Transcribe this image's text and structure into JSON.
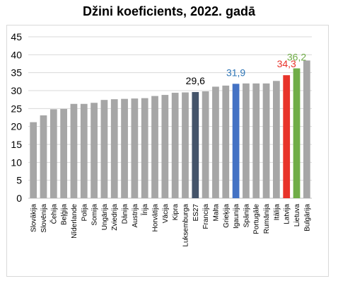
{
  "chart_data": {
    "type": "bar",
    "title": "Džini koeficients, 2022. gadā",
    "xlabel": "",
    "ylabel": "",
    "ylim": [
      0,
      45
    ],
    "yticks": [
      0,
      5,
      10,
      15,
      20,
      25,
      30,
      35,
      40,
      45
    ],
    "grid": true,
    "categories": [
      "Slovākija",
      "Slovēnija",
      "Čehija",
      "Beļģija",
      "Nīderlande",
      "Polija",
      "Somija",
      "Ungārija",
      "Zviedrija",
      "Dānija",
      "Austrija",
      "Īrija",
      "Horvātija",
      "Vācija",
      "Kipra",
      "Luksemburga",
      "ES27",
      "Francija",
      "Malta",
      "Grieķija",
      "Igaunija",
      "Spānija",
      "Portugāle",
      "Rumānija",
      "Itālija",
      "Latvija",
      "Lietuva",
      "Bulgārija"
    ],
    "values": [
      21.2,
      23.1,
      24.8,
      24.9,
      26.3,
      26.3,
      26.6,
      27.4,
      27.6,
      27.7,
      27.8,
      27.9,
      28.5,
      28.8,
      29.4,
      29.5,
      29.6,
      29.8,
      31.1,
      31.4,
      31.9,
      32.0,
      32.0,
      32.0,
      32.7,
      34.3,
      36.2,
      38.4
    ],
    "colors": {
      "default": "#a6a6a6",
      "ES27": "#44546a",
      "Igaunija": "#4472c4",
      "Latvija": "#e8332a",
      "Lietuva": "#70ad47",
      "Bulgārija": "#a6a6a6"
    },
    "data_labels": [
      {
        "category": "ES27",
        "text": "29,6",
        "color": "#000000"
      },
      {
        "category": "Igaunija",
        "text": "31,9",
        "color": "#2e75b6"
      },
      {
        "category": "Latvija",
        "text": "34,3",
        "color": "#e8332a"
      },
      {
        "category": "Lietuva",
        "text": "36,2",
        "color": "#70ad47"
      }
    ]
  }
}
